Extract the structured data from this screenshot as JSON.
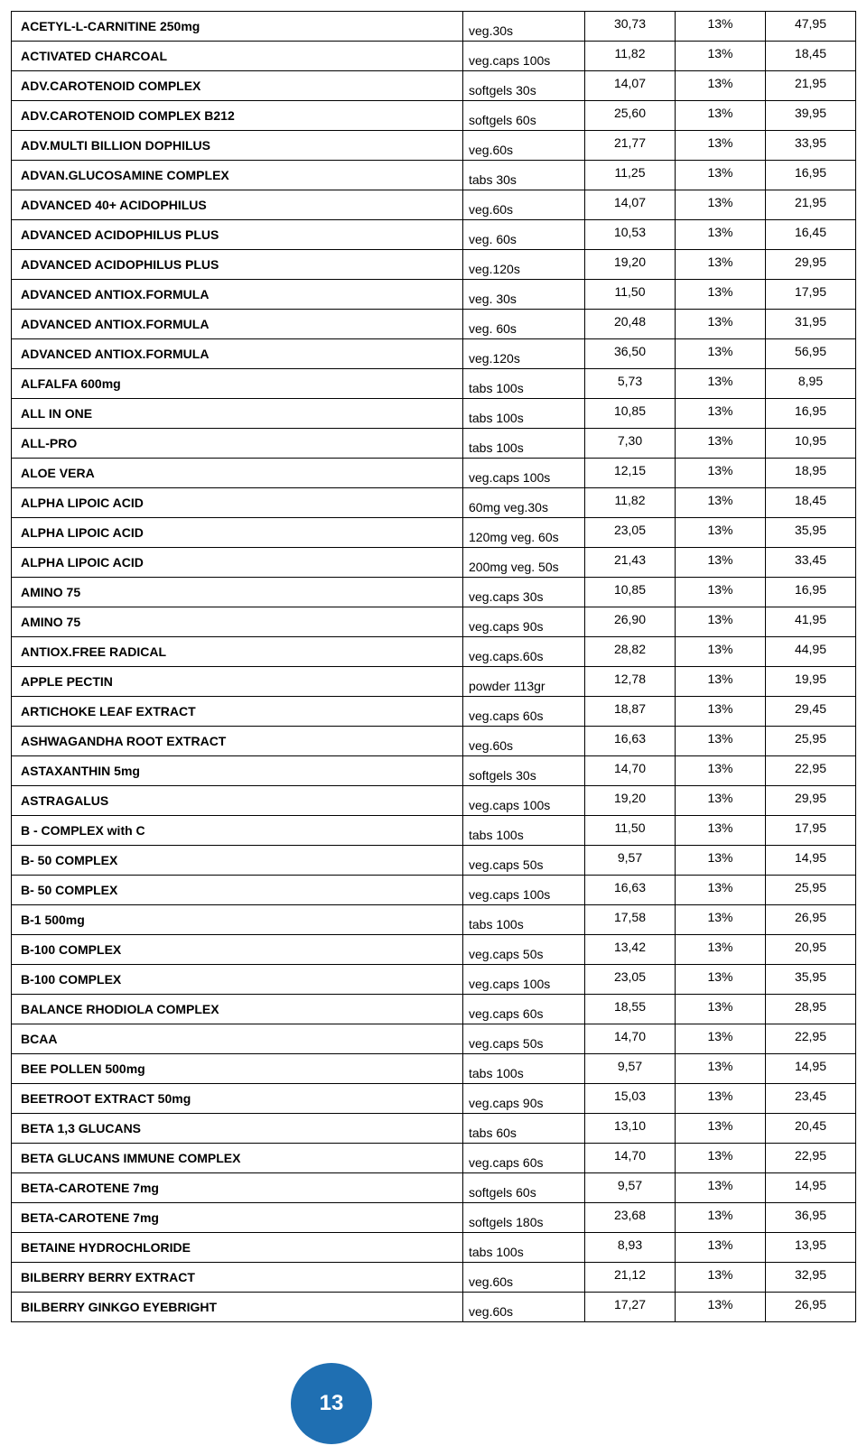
{
  "page_number": "13",
  "badge_color": "#1f6fb2",
  "rows": [
    {
      "name": "ACETYL-L-CARNITINE 250mg",
      "form": "veg.30s",
      "p1": "30,73",
      "pct": "13%",
      "p2": "47,95"
    },
    {
      "name": "ACTIVATED CHARCOAL",
      "form": "veg.caps 100s",
      "p1": "11,82",
      "pct": "13%",
      "p2": "18,45"
    },
    {
      "name": "ADV.CAROTENOID COMPLEX",
      "form": "softgels 30s",
      "p1": "14,07",
      "pct": "13%",
      "p2": "21,95"
    },
    {
      "name": "ADV.CAROTENOID COMPLEX B212",
      "form": "softgels 60s",
      "p1": "25,60",
      "pct": "13%",
      "p2": "39,95"
    },
    {
      "name": "ADV.MULTI BILLION DOPHILUS",
      "form": "veg.60s",
      "p1": "21,77",
      "pct": "13%",
      "p2": "33,95"
    },
    {
      "name": "ADVAN.GLUCOSAMINE COMPLEX",
      "form": "tabs 30s",
      "p1": "11,25",
      "pct": "13%",
      "p2": "16,95"
    },
    {
      "name": "ADVANCED 40+ ACIDOPHILUS",
      "form": "veg.60s",
      "p1": "14,07",
      "pct": "13%",
      "p2": "21,95"
    },
    {
      "name": "ADVANCED ACIDOPHILUS PLUS",
      "form": "veg. 60s",
      "p1": "10,53",
      "pct": "13%",
      "p2": "16,45"
    },
    {
      "name": "ADVANCED ACIDOPHILUS PLUS",
      "form": "veg.120s",
      "p1": "19,20",
      "pct": "13%",
      "p2": "29,95"
    },
    {
      "name": "ADVANCED ANTIOX.FORMULA",
      "form": "veg. 30s",
      "p1": "11,50",
      "pct": "13%",
      "p2": "17,95"
    },
    {
      "name": "ADVANCED ANTIOX.FORMULA",
      "form": "veg. 60s",
      "p1": "20,48",
      "pct": "13%",
      "p2": "31,95"
    },
    {
      "name": "ADVANCED ANTIOX.FORMULA",
      "form": "veg.120s",
      "p1": "36,50",
      "pct": "13%",
      "p2": "56,95"
    },
    {
      "name": "ALFALFA 600mg",
      "form": "tabs 100s",
      "p1": "5,73",
      "pct": "13%",
      "p2": "8,95"
    },
    {
      "name": "ALL IN ONE",
      "form": "tabs 100s",
      "p1": "10,85",
      "pct": "13%",
      "p2": "16,95"
    },
    {
      "name": "ALL-PRO",
      "form": "tabs 100s",
      "p1": "7,30",
      "pct": "13%",
      "p2": "10,95"
    },
    {
      "name": "ALOE VERA",
      "form": "veg.caps 100s",
      "p1": "12,15",
      "pct": "13%",
      "p2": "18,95"
    },
    {
      "name": "ALPHA LIPOIC ACID",
      "form": "60mg veg.30s",
      "p1": "11,82",
      "pct": "13%",
      "p2": "18,45"
    },
    {
      "name": "ALPHA LIPOIC ACID",
      "form": "120mg veg. 60s",
      "p1": "23,05",
      "pct": "13%",
      "p2": "35,95"
    },
    {
      "name": "ALPHA LIPOIC ACID",
      "form": "200mg veg. 50s",
      "p1": "21,43",
      "pct": "13%",
      "p2": "33,45"
    },
    {
      "name": "AMINO 75",
      "form": "veg.caps 30s",
      "p1": "10,85",
      "pct": "13%",
      "p2": "16,95"
    },
    {
      "name": "AMINO 75",
      "form": "veg.caps 90s",
      "p1": "26,90",
      "pct": "13%",
      "p2": "41,95"
    },
    {
      "name": "ANTIOX.FREE RADICAL",
      "form": "veg.caps.60s",
      "p1": "28,82",
      "pct": "13%",
      "p2": "44,95"
    },
    {
      "name": "APPLE PECTIN",
      "form": "powder 113gr",
      "p1": "12,78",
      "pct": "13%",
      "p2": "19,95"
    },
    {
      "name": "ARTICHOKE LEAF EXTRACT",
      "form": "veg.caps 60s",
      "p1": "18,87",
      "pct": "13%",
      "p2": "29,45"
    },
    {
      "name": "ASHWAGANDHA ROOT EXTRACT",
      "form": "veg.60s",
      "p1": "16,63",
      "pct": "13%",
      "p2": "25,95"
    },
    {
      "name": "ASTAXANTHIN 5mg",
      "form": "softgels 30s",
      "p1": "14,70",
      "pct": "13%",
      "p2": "22,95"
    },
    {
      "name": "ASTRAGALUS",
      "form": "veg.caps 100s",
      "p1": "19,20",
      "pct": "13%",
      "p2": "29,95"
    },
    {
      "name": "B - COMPLEX with C",
      "form": "tabs 100s",
      "p1": "11,50",
      "pct": "13%",
      "p2": "17,95"
    },
    {
      "name": "B- 50 COMPLEX",
      "form": "veg.caps  50s",
      "p1": "9,57",
      "pct": "13%",
      "p2": "14,95"
    },
    {
      "name": "B- 50 COMPLEX",
      "form": "veg.caps 100s",
      "p1": "16,63",
      "pct": "13%",
      "p2": "25,95"
    },
    {
      "name": "B-1 500mg",
      "form": "tabs 100s",
      "p1": "17,58",
      "pct": "13%",
      "p2": "26,95"
    },
    {
      "name": "B-100 COMPLEX",
      "form": "veg.caps  50s",
      "p1": "13,42",
      "pct": "13%",
      "p2": "20,95"
    },
    {
      "name": "B-100 COMPLEX",
      "form": "veg.caps 100s",
      "p1": "23,05",
      "pct": "13%",
      "p2": "35,95"
    },
    {
      "name": "BALANCE RHODIOLA COMPLEX",
      "form": "veg.caps 60s",
      "p1": "18,55",
      "pct": "13%",
      "p2": "28,95"
    },
    {
      "name": "BCAA",
      "form": " veg.caps 50s",
      "p1": "14,70",
      "pct": "13%",
      "p2": "22,95"
    },
    {
      "name": "BEE POLLEN 500mg",
      "form": " tabs 100s",
      "p1": "9,57",
      "pct": "13%",
      "p2": "14,95"
    },
    {
      "name": "BEETROOT EXTRACT 50mg",
      "form": "veg.caps 90s",
      "p1": "15,03",
      "pct": "13%",
      "p2": "23,45"
    },
    {
      "name": "BETA 1,3 GLUCANS",
      "form": "tabs 60s",
      "p1": "13,10",
      "pct": "13%",
      "p2": "20,45"
    },
    {
      "name": "BETA GLUCANS IMMUNE COMPLEX",
      "form": "veg.caps 60s",
      "p1": "14,70",
      "pct": "13%",
      "p2": "22,95"
    },
    {
      "name": "BETA-CAROTENE 7mg",
      "form": "softgels  60s",
      "p1": "9,57",
      "pct": "13%",
      "p2": "14,95"
    },
    {
      "name": "BETA-CAROTENE 7mg",
      "form": "softgels 180s",
      "p1": "23,68",
      "pct": "13%",
      "p2": "36,95"
    },
    {
      "name": "BETAINE HYDROCHLORIDE",
      "form": "tabs 100s",
      "p1": "8,93",
      "pct": "13%",
      "p2": "13,95"
    },
    {
      "name": "BILBERRY BERRY EXTRACT",
      "form": "veg.60s",
      "p1": "21,12",
      "pct": "13%",
      "p2": "32,95"
    },
    {
      "name": "BILBERRY GINKGO EYEBRIGHT",
      "form": "veg.60s",
      "p1": "17,27",
      "pct": "13%",
      "p2": "26,95"
    }
  ]
}
